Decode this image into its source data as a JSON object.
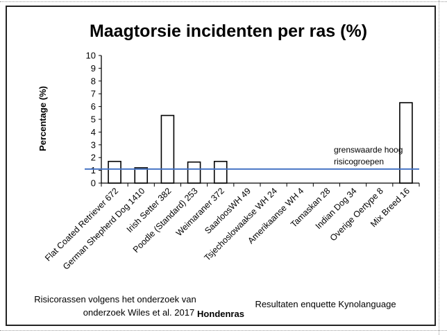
{
  "chart_data": {
    "type": "bar",
    "title": "Maagtorsie incidenten per ras (%)",
    "xlabel": "Hondenras",
    "ylabel": "Percentage (%)",
    "ylim": [
      0,
      10
    ],
    "yticks": [
      0,
      1,
      2,
      3,
      4,
      5,
      6,
      7,
      8,
      9,
      10
    ],
    "grid": false,
    "categories": [
      "Flat Coated Retriever 672",
      "German Shepherd Dog 1410",
      "Irish Setter 382",
      "Poodle (Standard) 253",
      "Weimaraner 372",
      "SaarloosWH 49",
      "Tsjechoslowaakse WH 24",
      "Amerikaanse WH 4",
      "Tamaskan 28",
      "Indian Dog 34",
      "Overige Oertype 8",
      "Mix Breed 16"
    ],
    "values": [
      1.7,
      1.2,
      5.3,
      1.65,
      1.7,
      0,
      0,
      0,
      0,
      0,
      0,
      6.3
    ],
    "reference_line": {
      "value": 1.1,
      "label_line1": "grenswaarde hoog",
      "label_line2": "risicogroepen",
      "color": "#4472c4"
    },
    "bar_fill": "#ffffff",
    "bar_stroke": "#000000",
    "notes": {
      "left_line1": "Risicorassen volgens het onderzoek van",
      "left_line2": "onderzoek Wiles et al. 2017",
      "right": "Resultaten enquette Kynolanguage"
    }
  }
}
